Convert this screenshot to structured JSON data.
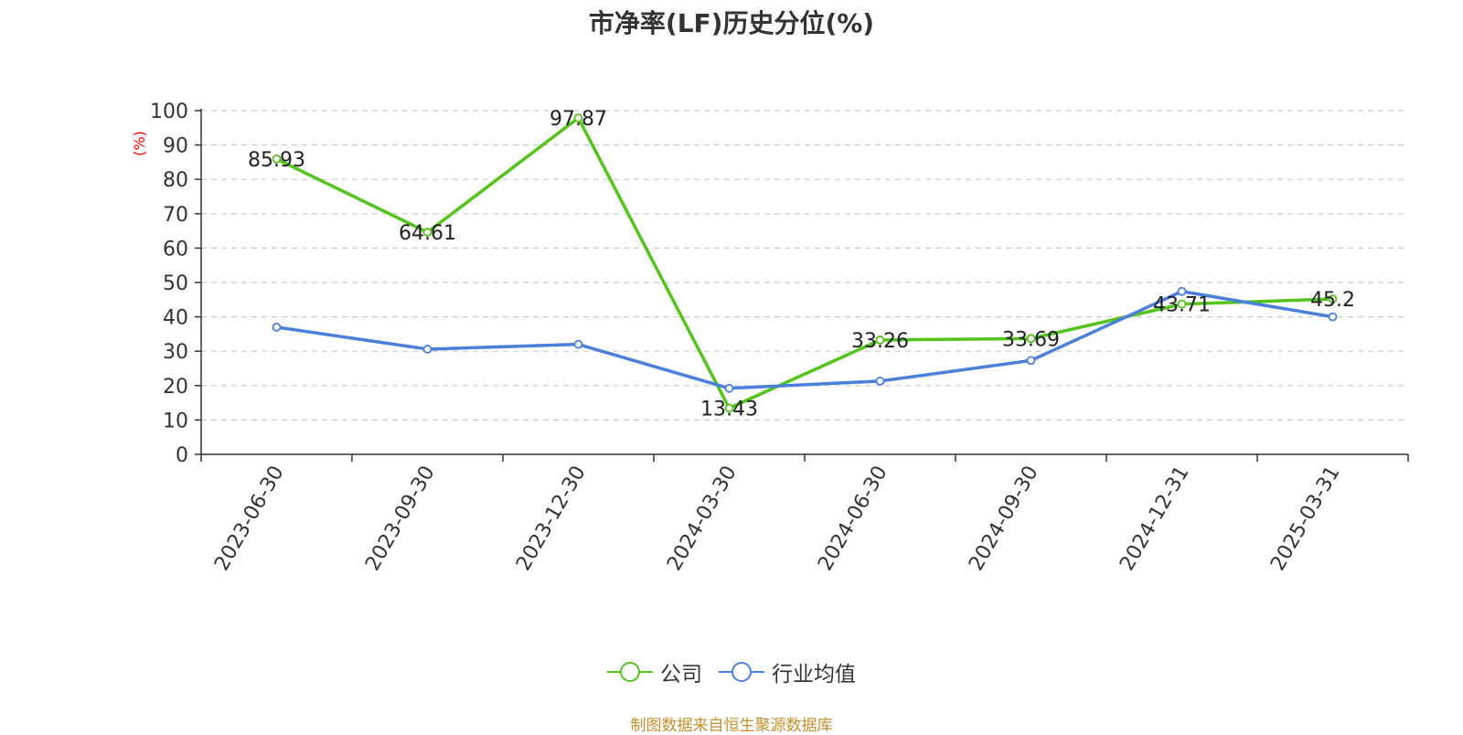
{
  "chart_data": {
    "type": "line",
    "title": "市净率(LF)历史分位(%)",
    "ylabel": "(%)",
    "xlabel": "",
    "ylim": [
      0,
      100
    ],
    "yticks": [
      0,
      10,
      20,
      30,
      40,
      50,
      60,
      70,
      80,
      90,
      100
    ],
    "grid": true,
    "legend_position": "bottom",
    "categories": [
      "2023-06-30",
      "2023-09-30",
      "2023-12-30",
      "2024-03-30",
      "2024-06-30",
      "2024-09-30",
      "2024-12-31",
      "2025-03-31"
    ],
    "series": [
      {
        "name": "公司",
        "color": "#52c41a",
        "values": [
          85.93,
          64.61,
          97.87,
          13.43,
          33.26,
          33.69,
          43.71,
          45.2
        ],
        "data_labels": [
          "85.93",
          "64.61",
          "97.87",
          "13.43",
          "33.26",
          "33.69",
          "43.71",
          "45.2"
        ]
      },
      {
        "name": "行业均值",
        "color": "#4a7fdc",
        "values": [
          37.0,
          30.6,
          32.0,
          19.2,
          21.3,
          27.3,
          47.4,
          40.0
        ]
      }
    ]
  },
  "source_note": "制图数据来自恒生聚源数据库"
}
